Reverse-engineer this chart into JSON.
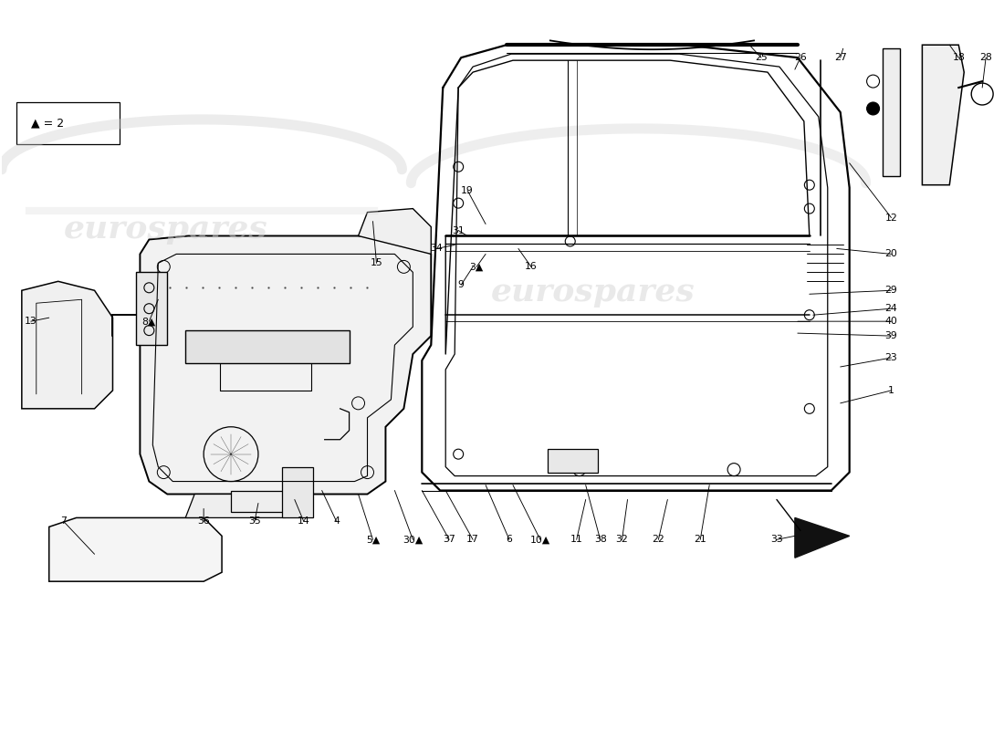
{
  "title": "",
  "bg_color": "#ffffff",
  "line_color": "#000000",
  "watermark_color": "#cccccc",
  "watermark_text": "eurospares",
  "fig_width": 11.0,
  "fig_height": 8.0,
  "dpi": 100,
  "legend_text": "▲ = 2"
}
